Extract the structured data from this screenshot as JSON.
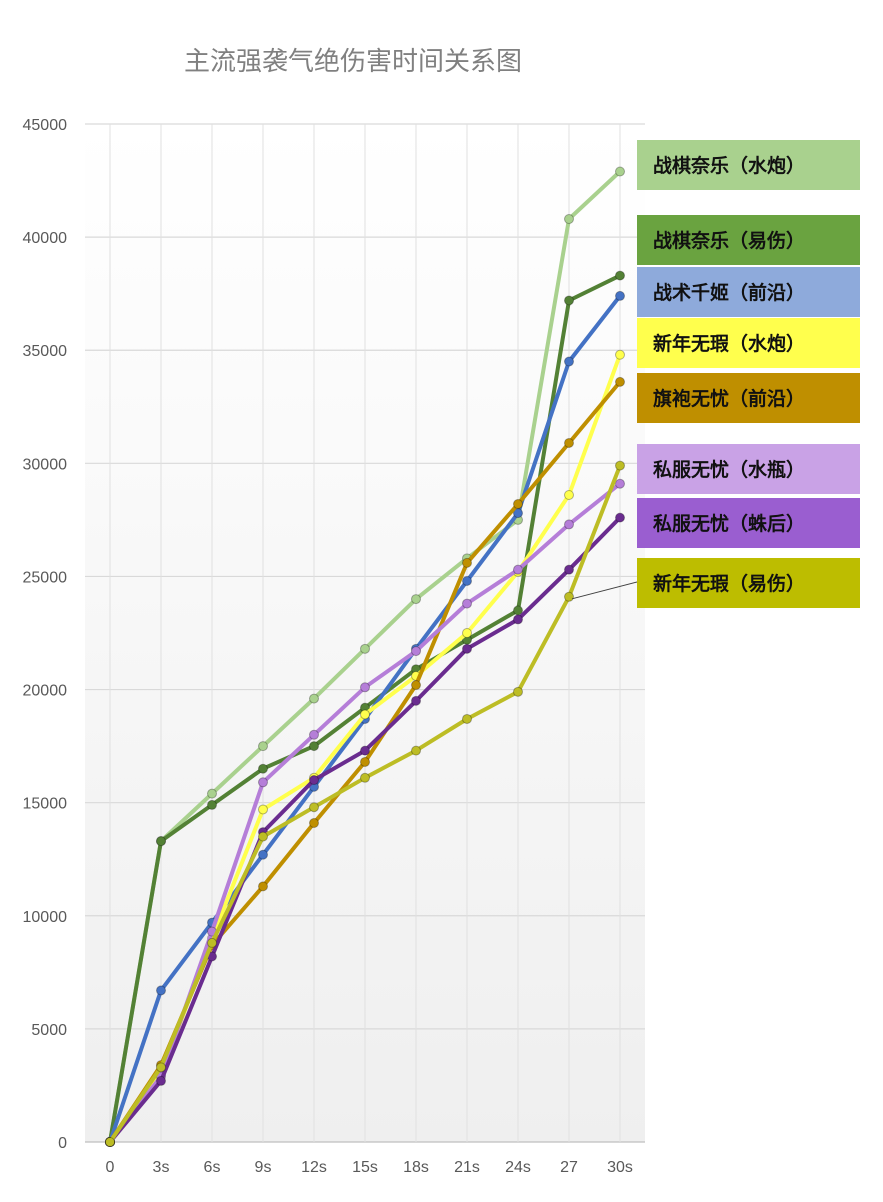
{
  "chart_data": {
    "type": "line",
    "title": "主流强袭气绝伤害时间关系图",
    "xlabel": "",
    "ylabel": "",
    "categories": [
      "0",
      "3s",
      "6s",
      "9s",
      "12s",
      "15s",
      "18s",
      "21s",
      "24s",
      "27",
      "30s"
    ],
    "ylim": [
      0,
      45000
    ],
    "yticks": [
      0,
      5000,
      10000,
      15000,
      20000,
      25000,
      30000,
      35000,
      40000,
      45000
    ],
    "grid": "on",
    "legend_position": "right",
    "series": [
      {
        "name": "战棋奈乐（水炮）",
        "color": "#a9d18e",
        "values": [
          0,
          13300,
          15400,
          17500,
          19600,
          21800,
          24000,
          25800,
          27500,
          40800,
          42900
        ]
      },
      {
        "name": "战棋奈乐（易伤）",
        "color": "#538135",
        "values": [
          0,
          13300,
          14900,
          16500,
          17500,
          19200,
          20900,
          22200,
          23500,
          37200,
          38300
        ]
      },
      {
        "name": "战术千姬（前沿）",
        "color": "#4472c4",
        "values": [
          0,
          6700,
          9700,
          12700,
          15700,
          18700,
          21800,
          24800,
          27800,
          34500,
          37400
        ]
      },
      {
        "name": "新年无瑕（水炮）",
        "color": "#ffff4d",
        "values": [
          0,
          3000,
          9000,
          14700,
          16100,
          18900,
          20600,
          22500,
          25200,
          28600,
          34800
        ]
      },
      {
        "name": "旗袍无忧（前沿）",
        "color": "#bf8f00",
        "values": [
          0,
          3400,
          8700,
          11300,
          14100,
          16800,
          20200,
          25600,
          28200,
          30900,
          33600
        ]
      },
      {
        "name": "私服无忧（水瓶）",
        "color": "#b57ed8",
        "values": [
          0,
          2900,
          9300,
          15900,
          18000,
          20100,
          21700,
          23800,
          25300,
          27300,
          29100
        ]
      },
      {
        "name": "私服无忧（蛛后）",
        "color": "#6a2c8f",
        "values": [
          0,
          2700,
          8200,
          13700,
          16000,
          17300,
          19500,
          21800,
          23100,
          25300,
          27600
        ]
      },
      {
        "name": "新年无瑕（易伤）",
        "color": "#bdbd25",
        "values": [
          0,
          3300,
          8800,
          13500,
          14800,
          16100,
          17300,
          18700,
          19900,
          24100,
          29900
        ]
      }
    ],
    "legend_boxes": [
      {
        "label": "战棋奈乐（水炮）",
        "bg": "#a9d18e"
      },
      {
        "label": "战棋奈乐（易伤）",
        "bg": "#6aa340"
      },
      {
        "label": "战术千姬（前沿）",
        "bg": "#8eaadb"
      },
      {
        "label": "新年无瑕（水炮）",
        "bg": "#ffff4d"
      },
      {
        "label": "旗袍无忧（前沿）",
        "bg": "#bf8f00"
      },
      {
        "label": "私服无忧（水瓶）",
        "bg": "#c9a2e6"
      },
      {
        "label": "私服无忧（蛛后）",
        "bg": "#9a5ed0"
      },
      {
        "label": "新年无瑕（易伤）",
        "bg": "#bdbd00"
      }
    ]
  }
}
